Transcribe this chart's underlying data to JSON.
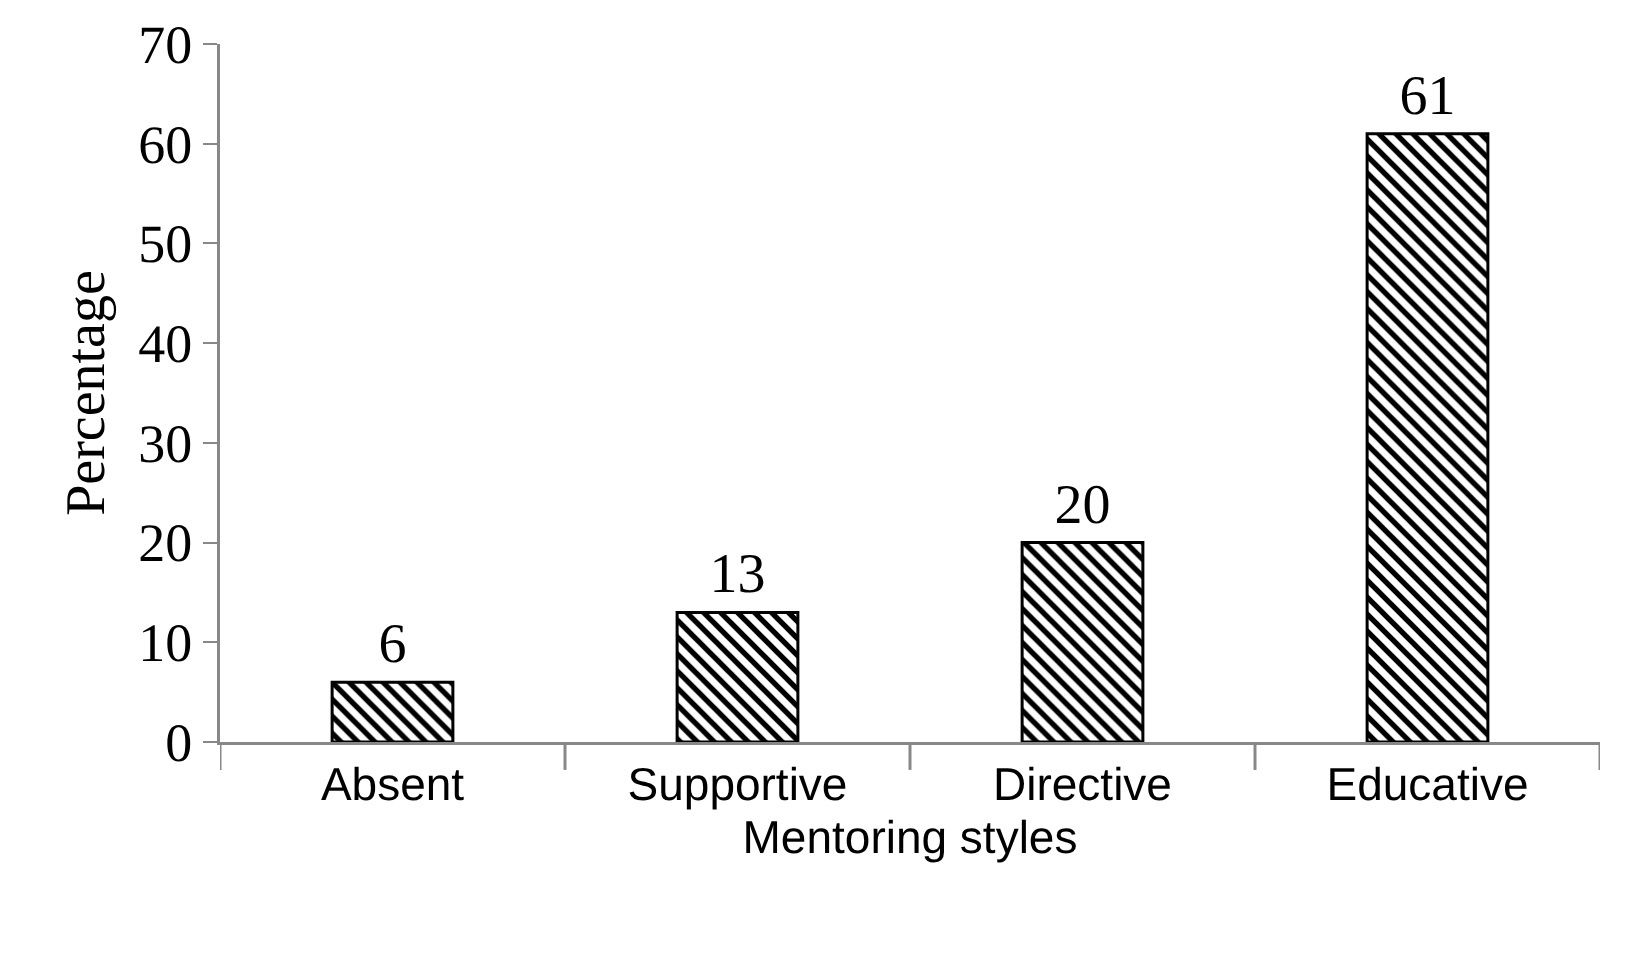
{
  "chart_data": {
    "type": "bar",
    "xlabel": "Mentoring styles",
    "ylabel": "Percentage",
    "categories": [
      "Absent",
      "Supportive",
      "Directive",
      "Educative"
    ],
    "values": [
      6,
      13,
      20,
      61
    ],
    "color": "#000000",
    "ylim": [
      0,
      70
    ],
    "yticks": [
      0,
      10,
      20,
      30,
      40,
      50,
      60,
      70
    ],
    "grid": false,
    "data_labels": true
  }
}
